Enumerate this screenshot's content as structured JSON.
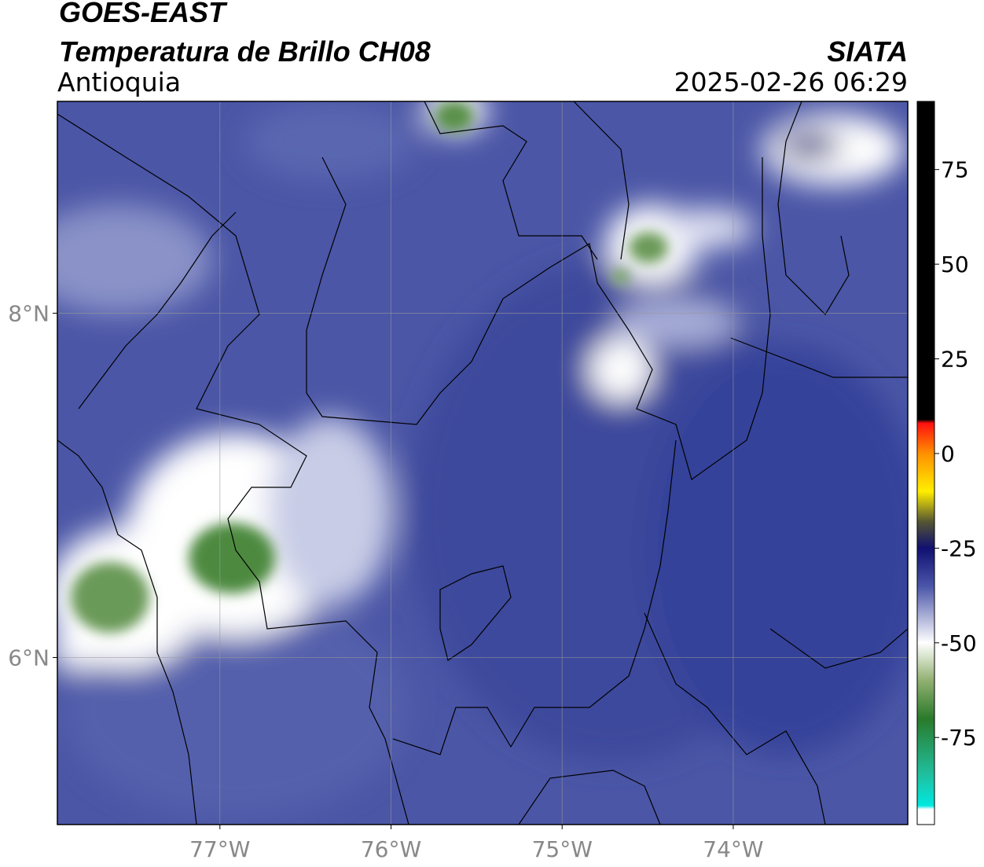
{
  "header": {
    "title": "GOES-EAST",
    "product": "Temperatura de Brillo CH08",
    "region": "Antioquia",
    "source": "SIATA",
    "datetime": "2025-02-26 06:29"
  },
  "map": {
    "xlim": [
      -77.95,
      -72.98
    ],
    "ylim": [
      5.03,
      9.23
    ],
    "grid": true,
    "xticks": [
      {
        "value": -77,
        "label": "77°W"
      },
      {
        "value": -76,
        "label": "76°W"
      },
      {
        "value": -75,
        "label": "75°W"
      },
      {
        "value": -74,
        "label": "74°W"
      }
    ],
    "yticks": [
      {
        "value": 8,
        "label": "8°N"
      },
      {
        "value": 6,
        "label": "6°N"
      }
    ]
  },
  "colorbar": {
    "lim": [
      -98,
      93
    ],
    "ticks": [
      75,
      50,
      25,
      0,
      -25,
      -50,
      -75
    ],
    "stops": [
      {
        "value": 93,
        "color": "#000000"
      },
      {
        "value": 9,
        "color": "#000000"
      },
      {
        "value": 8,
        "color": "#ff1010"
      },
      {
        "value": 0,
        "color": "#ff9000"
      },
      {
        "value": -10,
        "color": "#ffee00"
      },
      {
        "value": -18,
        "color": "#555533"
      },
      {
        "value": -25,
        "color": "#101070"
      },
      {
        "value": -35,
        "color": "#4a55a8"
      },
      {
        "value": -50,
        "color": "#ffffff"
      },
      {
        "value": -60,
        "color": "#90b070"
      },
      {
        "value": -70,
        "color": "#2a7a2a"
      },
      {
        "value": -85,
        "color": "#20c0a0"
      },
      {
        "value": -93,
        "color": "#00e8e0"
      },
      {
        "value": -94,
        "color": "#ffffff"
      },
      {
        "value": -98,
        "color": "#ffffff"
      }
    ]
  }
}
